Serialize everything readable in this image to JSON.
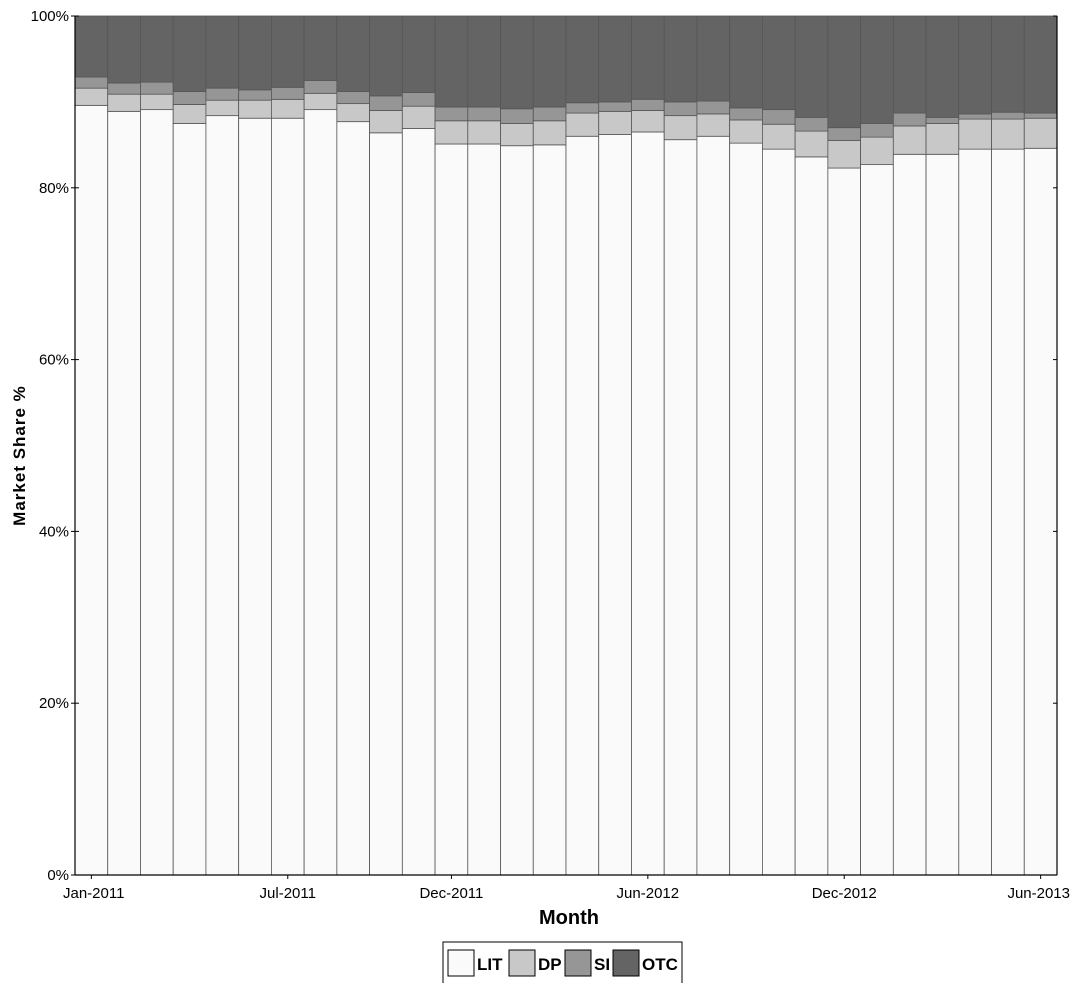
{
  "chart_data": {
    "type": "bar",
    "stacked": true,
    "title": "",
    "xlabel": "Month",
    "ylabel": "Market Share %",
    "ylim": [
      0,
      100
    ],
    "y_ticks": [
      "0%",
      "20%",
      "40%",
      "60%",
      "80%",
      "100%"
    ],
    "x_tick_labels": [
      "Jan-2011",
      "Jul-2011",
      "Dec-2011",
      "Jun-2012",
      "Dec-2012",
      "Jun-2013"
    ],
    "x_tick_months": [
      "2011-01",
      "2011-07",
      "2011-12",
      "2012-06",
      "2012-12",
      "2013-06"
    ],
    "grid": false,
    "legend_position": "bottom-center",
    "categories": [
      "2011-01",
      "2011-02",
      "2011-03",
      "2011-04",
      "2011-05",
      "2011-06",
      "2011-07",
      "2011-08",
      "2011-09",
      "2011-10",
      "2011-11",
      "2011-12",
      "2012-01",
      "2012-02",
      "2012-03",
      "2012-04",
      "2012-05",
      "2012-06",
      "2012-07",
      "2012-08",
      "2012-09",
      "2012-10",
      "2012-11",
      "2012-12",
      "2013-01",
      "2013-02",
      "2013-03",
      "2013-04",
      "2013-05",
      "2013-06"
    ],
    "series": [
      {
        "name": "LIT",
        "color": "#fafafa",
        "values": [
          89.6,
          88.9,
          89.1,
          87.5,
          88.4,
          88.1,
          88.1,
          89.1,
          87.7,
          86.4,
          86.9,
          85.1,
          85.1,
          84.9,
          85.0,
          86.0,
          86.2,
          86.5,
          85.6,
          86.0,
          85.2,
          84.5,
          83.6,
          82.3,
          82.7,
          83.9,
          83.9,
          84.5,
          84.5,
          84.6
        ]
      },
      {
        "name": "DP",
        "color": "#c8c8c8",
        "values": [
          2.0,
          2.0,
          1.8,
          2.2,
          1.8,
          2.1,
          2.2,
          1.9,
          2.1,
          2.6,
          2.6,
          2.7,
          2.7,
          2.6,
          2.8,
          2.7,
          2.7,
          2.5,
          2.8,
          2.6,
          2.7,
          2.9,
          3.0,
          3.2,
          3.2,
          3.3,
          3.6,
          3.5,
          3.5,
          3.5
        ]
      },
      {
        "name": "SI",
        "color": "#969696",
        "values": [
          1.3,
          1.3,
          1.4,
          1.5,
          1.4,
          1.2,
          1.4,
          1.5,
          1.4,
          1.7,
          1.6,
          1.6,
          1.6,
          1.7,
          1.6,
          1.2,
          1.1,
          1.3,
          1.6,
          1.5,
          1.4,
          1.7,
          1.6,
          1.5,
          1.6,
          1.5,
          0.7,
          0.6,
          0.8,
          0.6
        ]
      },
      {
        "name": "OTC",
        "color": "#646464",
        "values": [
          7.1,
          7.8,
          7.7,
          8.8,
          8.4,
          8.6,
          8.3,
          7.5,
          8.8,
          9.3,
          8.9,
          10.6,
          10.6,
          10.8,
          10.6,
          10.1,
          10.0,
          9.7,
          10.0,
          9.9,
          10.7,
          10.9,
          11.8,
          13.0,
          12.5,
          11.3,
          11.8,
          11.4,
          11.2,
          11.3
        ]
      }
    ]
  }
}
